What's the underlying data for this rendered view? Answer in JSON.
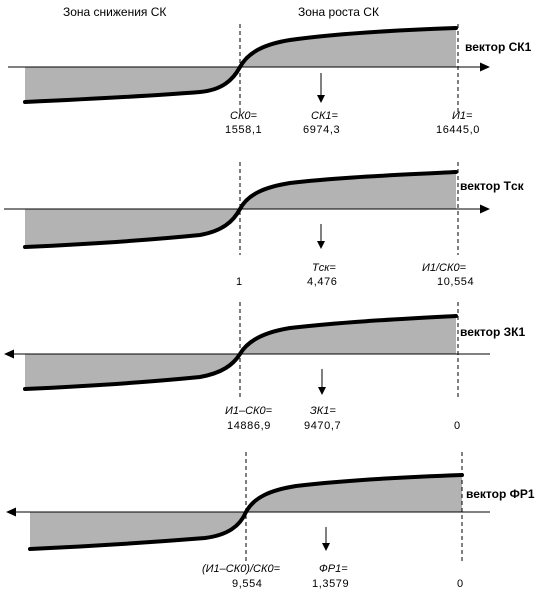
{
  "header": {
    "left_zone": "Зона снижения СК",
    "right_zone": "Зона роста СК"
  },
  "panels": [
    {
      "vector_label": "вектор СК1",
      "axis_direction": "right",
      "labels": [
        {
          "name": "СК0=",
          "value": "1558,1"
        },
        {
          "name": "СК1=",
          "value": "6974,3"
        },
        {
          "name": "И1=",
          "value": "16445,0"
        }
      ]
    },
    {
      "vector_label": "вектор Tск",
      "axis_direction": "right",
      "labels": [
        {
          "name": "",
          "value": "1"
        },
        {
          "name": "Tск=",
          "value": "4,476"
        },
        {
          "name": "И1/СК0=",
          "value": "10,554"
        }
      ]
    },
    {
      "vector_label": "вектор ЗК1",
      "axis_direction": "left",
      "labels": [
        {
          "name": "И1–СК0=",
          "value": "14886,9"
        },
        {
          "name": "ЗК1=",
          "value": "9470,7"
        },
        {
          "name": "",
          "value": "0"
        }
      ]
    },
    {
      "vector_label": "вектор ФР1",
      "axis_direction": "left",
      "labels": [
        {
          "name": "(И1–СК0)/СК0=",
          "value": "9,554"
        },
        {
          "name": "ФР1=",
          "value": "1,3579"
        },
        {
          "name": "",
          "value": "0"
        }
      ]
    }
  ]
}
